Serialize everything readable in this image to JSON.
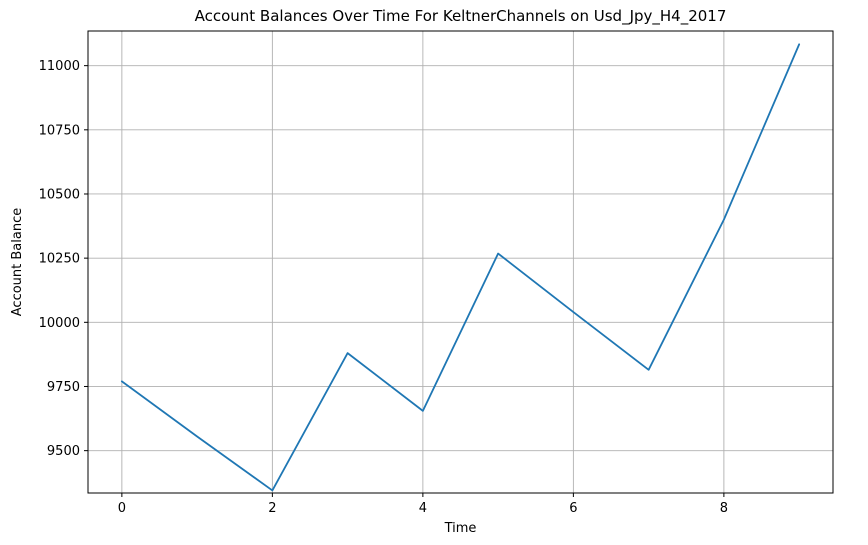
{
  "chart_data": {
    "type": "line",
    "title": "Account Balances Over Time For KeltnerChannels on Usd_Jpy_H4_2017",
    "xlabel": "Time",
    "ylabel": "Account Balance",
    "xlim": [
      -0.45,
      9.45
    ],
    "ylim": [
      9335,
      11135
    ],
    "xticks": [
      0,
      2,
      4,
      6,
      8
    ],
    "xtick_labels": [
      "0",
      "2",
      "4",
      "6",
      "8"
    ],
    "yticks": [
      9500,
      9750,
      10000,
      10250,
      10500,
      10750,
      11000
    ],
    "ytick_labels": [
      "9500",
      "9750",
      "10000",
      "10250",
      "10500",
      "10750",
      "11000"
    ],
    "grid": true,
    "series": [
      {
        "color": "#1f77b4",
        "x": [
          0,
          1,
          2,
          3,
          4,
          5,
          6,
          7,
          8,
          9
        ],
        "y": [
          9770,
          9555,
          9345,
          9880,
          9655,
          10268,
          10040,
          9815,
          10400,
          11083
        ]
      }
    ]
  }
}
